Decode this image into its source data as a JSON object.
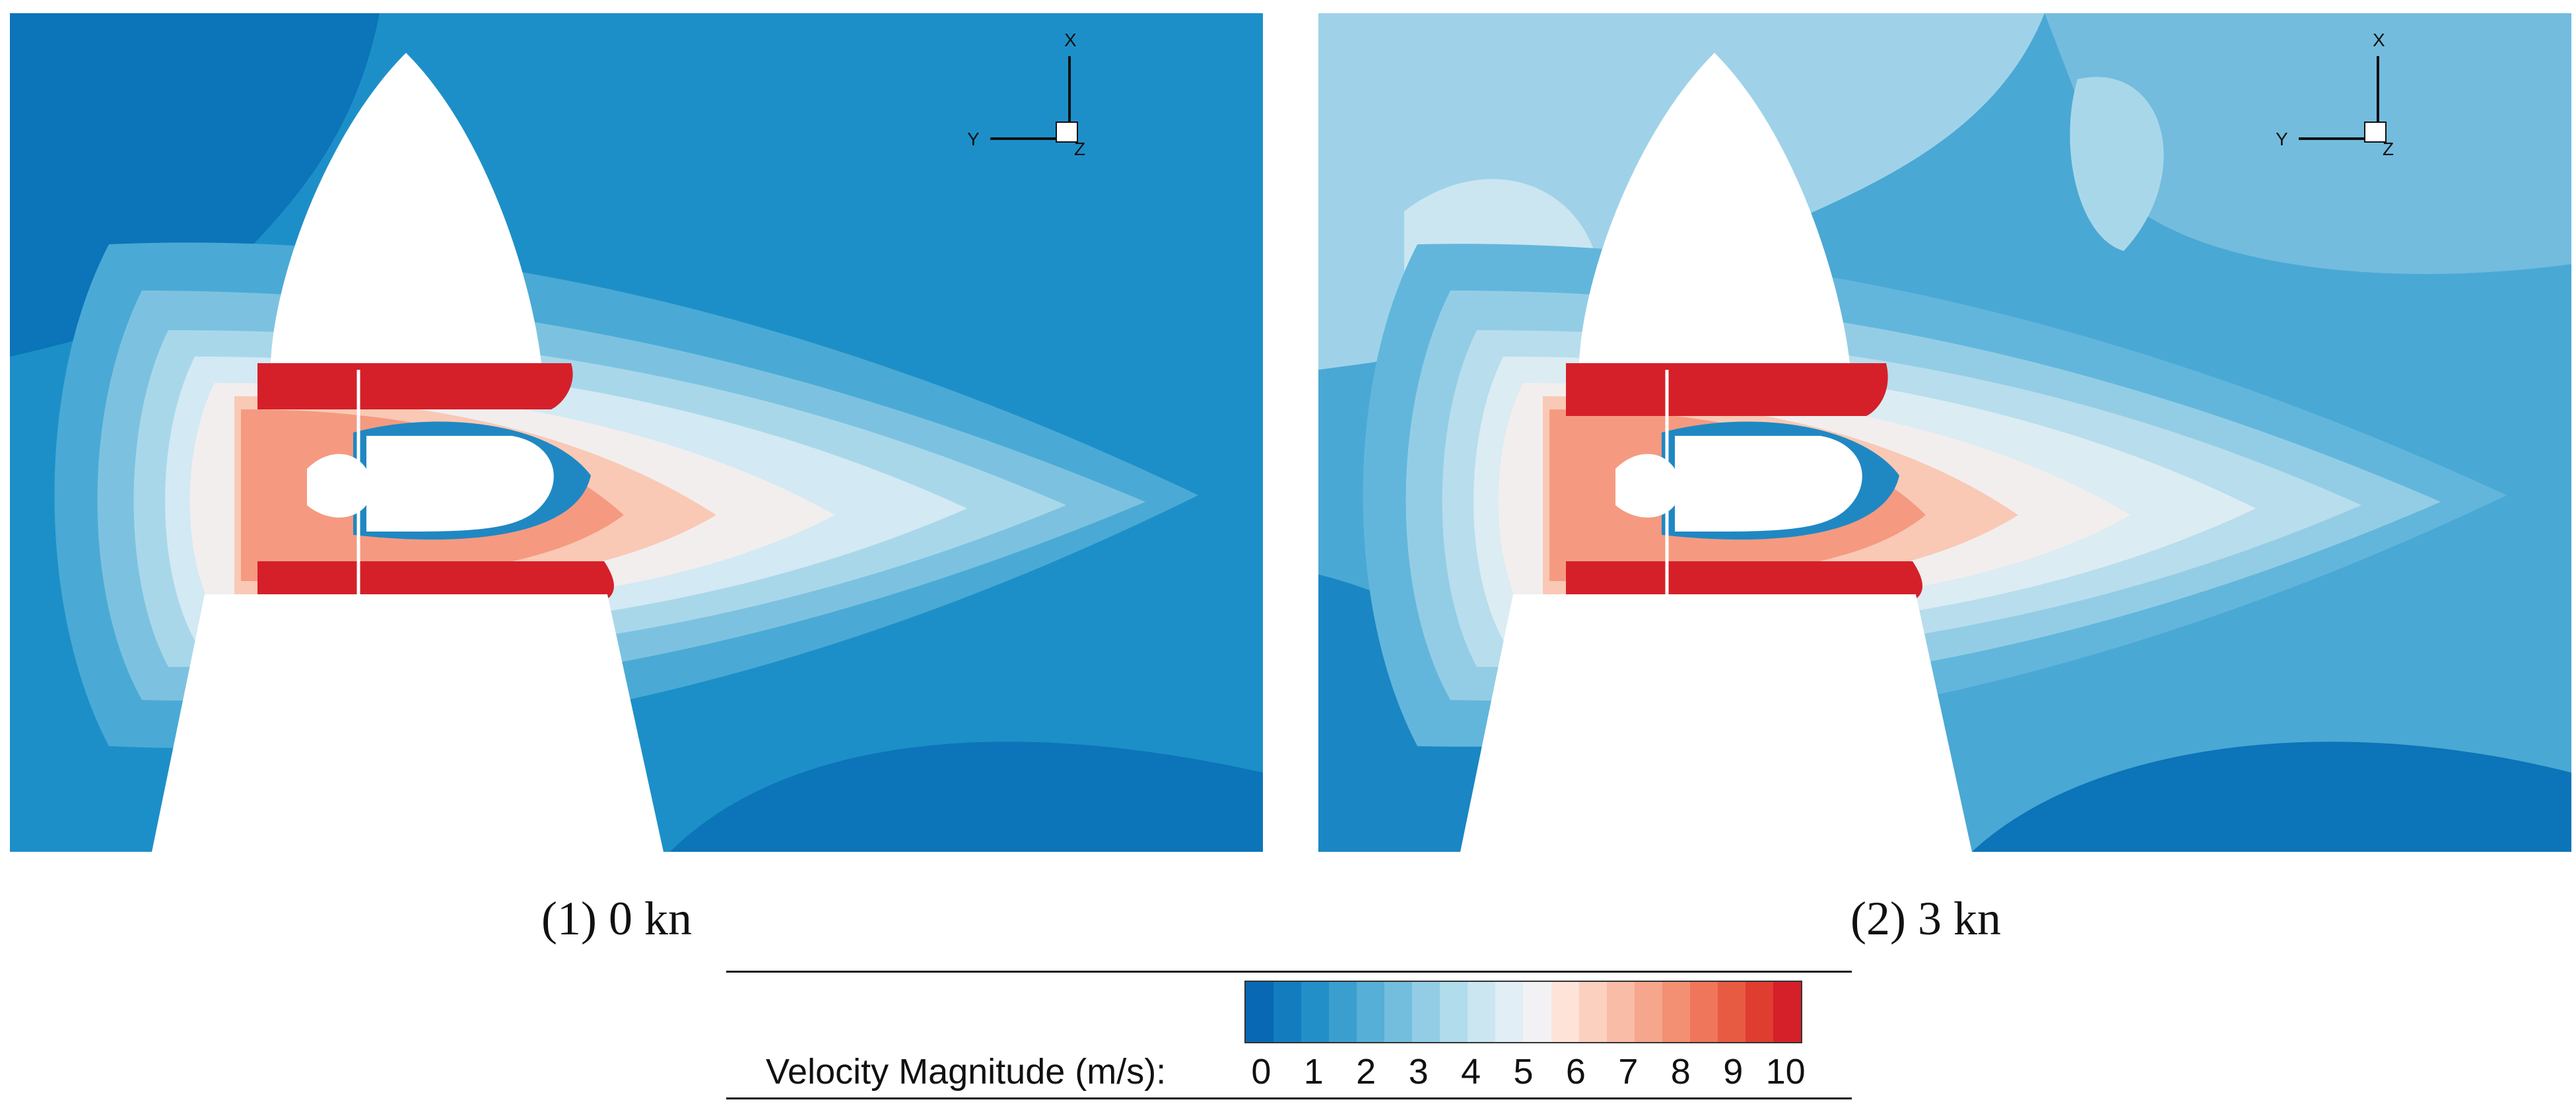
{
  "panels": [
    {
      "caption": "(1) 0 kn",
      "axis": {
        "x": "X",
        "y": "Y",
        "z": "Z"
      }
    },
    {
      "caption": "(2) 3 kn",
      "axis": {
        "x": "X",
        "y": "Y",
        "z": "Z"
      }
    }
  ],
  "legend": {
    "title": "Velocity Magnitude (m/s):",
    "ticks": [
      "0",
      "1",
      "2",
      "3",
      "4",
      "5",
      "6",
      "7",
      "8",
      "9",
      "10"
    ],
    "colors": [
      "#0868b3",
      "#127cbf",
      "#228fc8",
      "#3a9fcf",
      "#56afd6",
      "#74bedd",
      "#93cde5",
      "#b1dcec",
      "#cbe6f1",
      "#e1eef5",
      "#f2f2f4",
      "#fde3d8",
      "#fbd0bf",
      "#f9bca6",
      "#f6a68c",
      "#f38f73",
      "#ef765a",
      "#e85b43",
      "#de3d30",
      "#d5202a"
    ]
  }
}
